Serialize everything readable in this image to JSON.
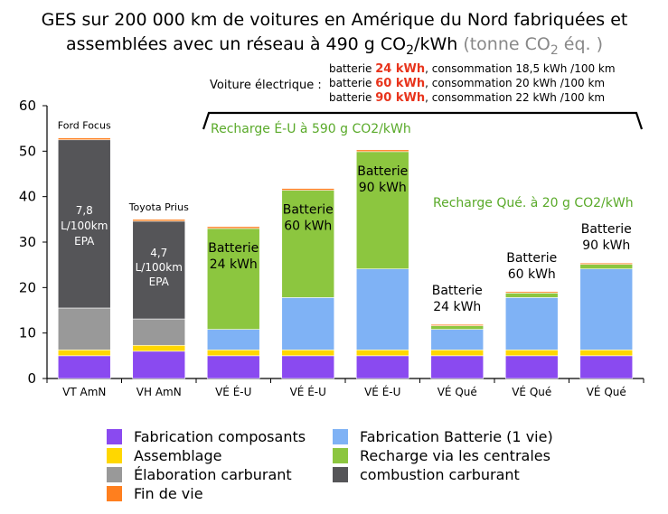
{
  "chart_data": {
    "type": "bar",
    "stacked": true,
    "title_line1": "GES sur 200 000 km de voitures en Amérique du Nord fabriquées et",
    "title_line2_prefix": "assemblées avec un réseau à 490 g CO",
    "title_line2_sub": "2",
    "title_line2_suffix": "/kWh",
    "title_unit_prefix": " (tonne CO",
    "title_unit_sub": "2",
    "title_unit_suffix": " éq. )",
    "ylim": [
      0,
      60
    ],
    "yticks": [
      "0",
      "10",
      "20",
      "30",
      "40",
      "50",
      "60"
    ],
    "grid": false,
    "categories": [
      "VT  AmN",
      "VH AmN",
      "VÉ É-U",
      "VÉ É-U",
      "VÉ É-U",
      "VÉ Qué",
      "VÉ Qué",
      "VÉ Qué"
    ],
    "series": [
      {
        "name": "Fabrication composants",
        "color": "#8a4af0",
        "values": [
          5,
          6,
          5,
          5,
          5,
          5,
          5,
          5
        ]
      },
      {
        "name": "Assemblage",
        "color": "#ffd700",
        "values": [
          1.3,
          1.3,
          1.3,
          1.3,
          1.3,
          1.3,
          1.3,
          1.3
        ]
      },
      {
        "name": "Fabrication Batterie (1 vie)",
        "color": "#7fb2f5",
        "values": [
          0,
          0,
          4.5,
          11.5,
          17.8,
          4.5,
          11.5,
          17.8
        ]
      },
      {
        "name": "Élaboration carburant",
        "color": "#999999",
        "values": [
          9.2,
          5.8,
          0,
          0,
          0,
          0,
          0,
          0
        ]
      },
      {
        "name": "Recharge via les centrales",
        "color": "#8cc63f",
        "values": [
          0,
          0,
          22.2,
          23.6,
          25.8,
          0.8,
          1.0,
          1.0
        ]
      },
      {
        "name": "combustion carburant",
        "color": "#555558",
        "values": [
          37,
          21.5,
          0,
          0,
          0,
          0,
          0,
          0
        ]
      },
      {
        "name": "Fin de vie",
        "color": "#ff7f1e",
        "values": [
          0.4,
          0.4,
          0.4,
          0.4,
          0.4,
          0.3,
          0.3,
          0.3
        ]
      }
    ],
    "legend": [
      {
        "name": "Fabrication composants",
        "color": "#8a4af0"
      },
      {
        "name": "Fabrication Batterie (1 vie)",
        "color": "#7fb2f5"
      },
      {
        "name": "Assemblage",
        "color": "#ffd700"
      },
      {
        "name": "Recharge via les centrales",
        "color": "#8cc63f"
      },
      {
        "name": "Élaboration carburant",
        "color": "#999999"
      },
      {
        "name": "combustion carburant",
        "color": "#555558"
      },
      {
        "name": "Fin de vie",
        "color": "#ff7f1e"
      }
    ],
    "annotations": {
      "ev_label": "Voiture électrique  :",
      "battery_lines": [
        {
          "prefix": "batterie ",
          "kwh": "24 kWh",
          "suffix": ", consommation 18,5 kWh /100 km"
        },
        {
          "prefix": "batterie ",
          "kwh": "60 kWh",
          "suffix": ", consommation 20 kWh /100 km"
        },
        {
          "prefix": "batterie ",
          "kwh": "90 kWh",
          "suffix": ", consommation 22 kWh /100 km"
        }
      ],
      "recharge_us": "Recharge É-U à 590 g CO2/kWh",
      "recharge_qc": "Recharge Qué. à 20 g CO2/kWh",
      "ford_label": "Ford Focus",
      "prius_label": "Toyota Prius",
      "ford_inner": [
        "7,8",
        "L/100km",
        "EPA"
      ],
      "prius_inner": [
        "4,7",
        "L/100km",
        "EPA"
      ],
      "battery_word": "Batterie",
      "bar_battery_labels": [
        "",
        "",
        "24 kWh",
        "60 kWh",
        "90 kWh",
        "24 kWh",
        "60 kWh",
        "90 kWh"
      ],
      "kwh_color": "#e8341c",
      "green_text_color": "#5aaa2a"
    }
  }
}
